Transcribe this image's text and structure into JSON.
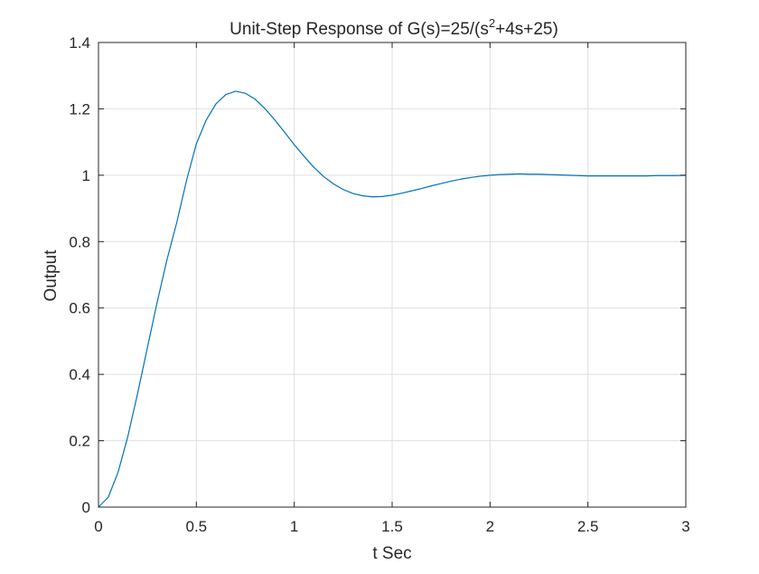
{
  "chart_data": {
    "type": "line",
    "title": {
      "prefix": "Unit-Step Response of G(s)=25/(s",
      "superscript": "2",
      "suffix": "+4s+25)"
    },
    "xlabel": "t Sec",
    "ylabel": "Output",
    "xlim": [
      0,
      3
    ],
    "ylim": [
      0,
      1.4
    ],
    "xticks": [
      0,
      0.5,
      1,
      1.5,
      2,
      2.5,
      3
    ],
    "xtick_labels": [
      "0",
      "0.5",
      "1",
      "1.5",
      "2",
      "2.5",
      "3"
    ],
    "yticks": [
      0,
      0.2,
      0.4,
      0.6,
      0.8,
      1.0,
      1.2,
      1.4
    ],
    "ytick_labels": [
      "0",
      "0.2",
      "0.4",
      "0.6",
      "0.8",
      "1",
      "1.2",
      "1.4"
    ],
    "grid": true,
    "line_color": "#0072BD",
    "series": [
      {
        "x": [
          0,
          0.05,
          0.1,
          0.15,
          0.2,
          0.25,
          0.3,
          0.35,
          0.4,
          0.45,
          0.5,
          0.55,
          0.6,
          0.65,
          0.7,
          0.75,
          0.8,
          0.85,
          0.9,
          0.95,
          1.0,
          1.05,
          1.1,
          1.15,
          1.2,
          1.25,
          1.3,
          1.35,
          1.4,
          1.45,
          1.5,
          1.55,
          1.6,
          1.65,
          1.7,
          1.75,
          1.8,
          1.85,
          1.9,
          1.95,
          2.0,
          2.05,
          2.1,
          2.15,
          2.2,
          2.25,
          2.3,
          2.35,
          2.4,
          2.45,
          2.5,
          2.55,
          2.6,
          2.65,
          2.7,
          2.75,
          2.8,
          2.85,
          2.9,
          2.95,
          3.0
        ],
        "values": [
          0,
          0.03,
          0.105,
          0.213,
          0.343,
          0.481,
          0.618,
          0.746,
          0.858,
          0.985,
          1.095,
          1.166,
          1.215,
          1.243,
          1.253,
          1.247,
          1.229,
          1.201,
          1.167,
          1.13,
          1.092,
          1.057,
          1.024,
          0.996,
          0.974,
          0.957,
          0.945,
          0.938,
          0.935,
          0.936,
          0.94,
          0.946,
          0.953,
          0.96,
          0.968,
          0.975,
          0.982,
          0.988,
          0.993,
          0.997,
          1.0,
          1.002,
          1.003,
          1.004,
          1.003,
          1.003,
          1.002,
          1.001,
          1.0,
          0.999,
          0.998,
          0.998,
          0.998,
          0.998,
          0.998,
          0.998,
          0.998,
          0.999,
          0.999,
          0.999,
          1.0
        ]
      }
    ]
  }
}
